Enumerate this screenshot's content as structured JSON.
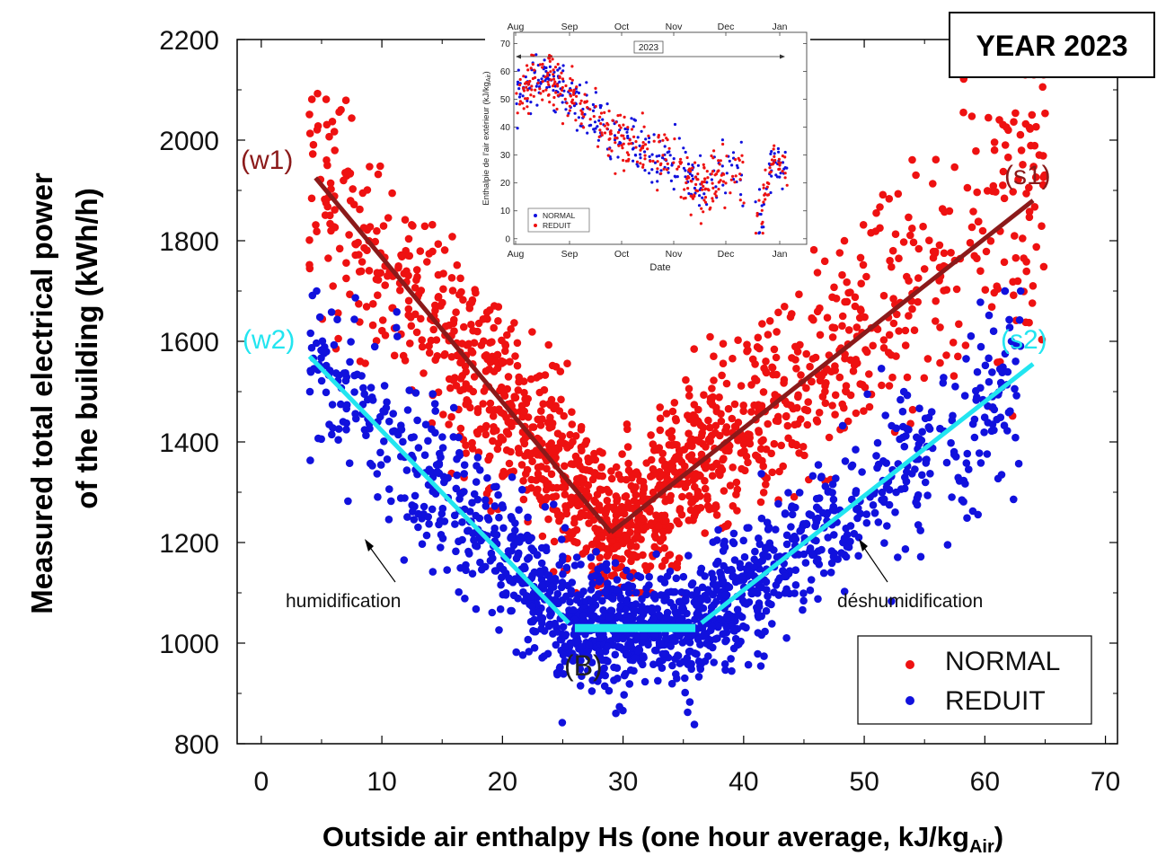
{
  "chart_data": {
    "type": "scatter",
    "xlabel": "Outside air enthalpy Hs (one hour average, kJ/kg",
    "xlabel_sub": "Air",
    "xlabel_end": ")",
    "ylabel_line1": "Measured total electrical power",
    "ylabel_line2": "of the building (kWh/h)",
    "xlim": [
      -2,
      71
    ],
    "ylim": [
      800,
      2200
    ],
    "x_ticks": [
      0,
      10,
      20,
      30,
      40,
      50,
      60,
      70
    ],
    "x_tick_labels": [
      "0",
      "10",
      "20",
      "30",
      "40",
      "50",
      "60",
      "70"
    ],
    "y_ticks": [
      800,
      1000,
      1200,
      1400,
      1600,
      1800,
      2000,
      2200
    ],
    "y_tick_labels": [
      "800",
      "1000",
      "1200",
      "1400",
      "1600",
      "1800",
      "2000",
      "2200"
    ],
    "year_label": "YEAR 2023",
    "legend": {
      "placement": "bottom-right",
      "entries": [
        {
          "name": "NORMAL",
          "color": "#ee1111"
        },
        {
          "name": "REDUIT",
          "color": "#1111dd"
        }
      ]
    },
    "series": [
      {
        "name": "NORMAL",
        "color": "#ee1111",
        "approx_count": 1500,
        "shape": "V-shaped cloud, min near Hs=29 at ~1220 kWh/h"
      },
      {
        "name": "REDUIT",
        "color": "#1111dd",
        "approx_count": 1500,
        "shape": "V-shaped cloud with flat bottom near 1030 kWh/h between Hs=26 and 36"
      }
    ],
    "fit_lines": [
      {
        "label": "(w1)",
        "color": "#8b1a1a",
        "points": [
          [
            4.5,
            1925
          ],
          [
            29,
            1220
          ]
        ]
      },
      {
        "label": "(s1)",
        "color": "#8b1a1a",
        "points": [
          [
            29,
            1220
          ],
          [
            64,
            1880
          ]
        ]
      },
      {
        "label": "(w2)",
        "color": "#22e5f0",
        "points": [
          [
            4,
            1570
          ],
          [
            25.5,
            1040
          ]
        ]
      },
      {
        "label": "(B)",
        "color": "#22e5f0",
        "points": [
          [
            26,
            1030
          ],
          [
            36,
            1030
          ]
        ]
      },
      {
        "label": "(s2)",
        "color": "#22e5f0",
        "points": [
          [
            36.5,
            1040
          ],
          [
            64,
            1555
          ]
        ]
      }
    ],
    "annotations": [
      {
        "text": "humidification",
        "arrow_from": [
          13.5,
          1110
        ],
        "arrow_to": [
          10,
          1190
        ]
      },
      {
        "text": "déshumidification",
        "arrow_from": [
          52,
          1110
        ],
        "arrow_to": [
          49,
          1190
        ]
      }
    ],
    "inset": {
      "type": "scatter",
      "xlabel": "Date",
      "ylabel": "Enthalpie de l'air extérieur (kJ/kg",
      "ylabel_sub": "Air",
      "ylabel_end": ")",
      "year_label": "2023",
      "x_tick_labels": [
        "Aug",
        "Sep",
        "Oct",
        "Nov",
        "Dec",
        "Jan"
      ],
      "y_ticks": [
        0,
        10,
        20,
        30,
        40,
        50,
        60,
        70
      ],
      "y_tick_labels": [
        "0",
        "10",
        "20",
        "30",
        "40",
        "50",
        "60",
        "70"
      ],
      "ylim": [
        -2,
        74
      ],
      "legend_entries": [
        {
          "name": "NORMAL",
          "color": "#1111dd"
        },
        {
          "name": "REDUIT",
          "color": "#ee1111"
        }
      ],
      "trend_days": [
        0,
        10,
        20,
        30,
        40,
        50,
        60,
        70,
        80,
        90,
        100,
        110,
        120,
        130,
        140,
        150,
        160
      ],
      "trend_values": [
        52,
        57,
        58,
        53,
        47,
        40,
        35,
        33,
        30,
        27,
        22,
        18,
        26,
        24,
        5,
        28,
        25
      ]
    }
  }
}
